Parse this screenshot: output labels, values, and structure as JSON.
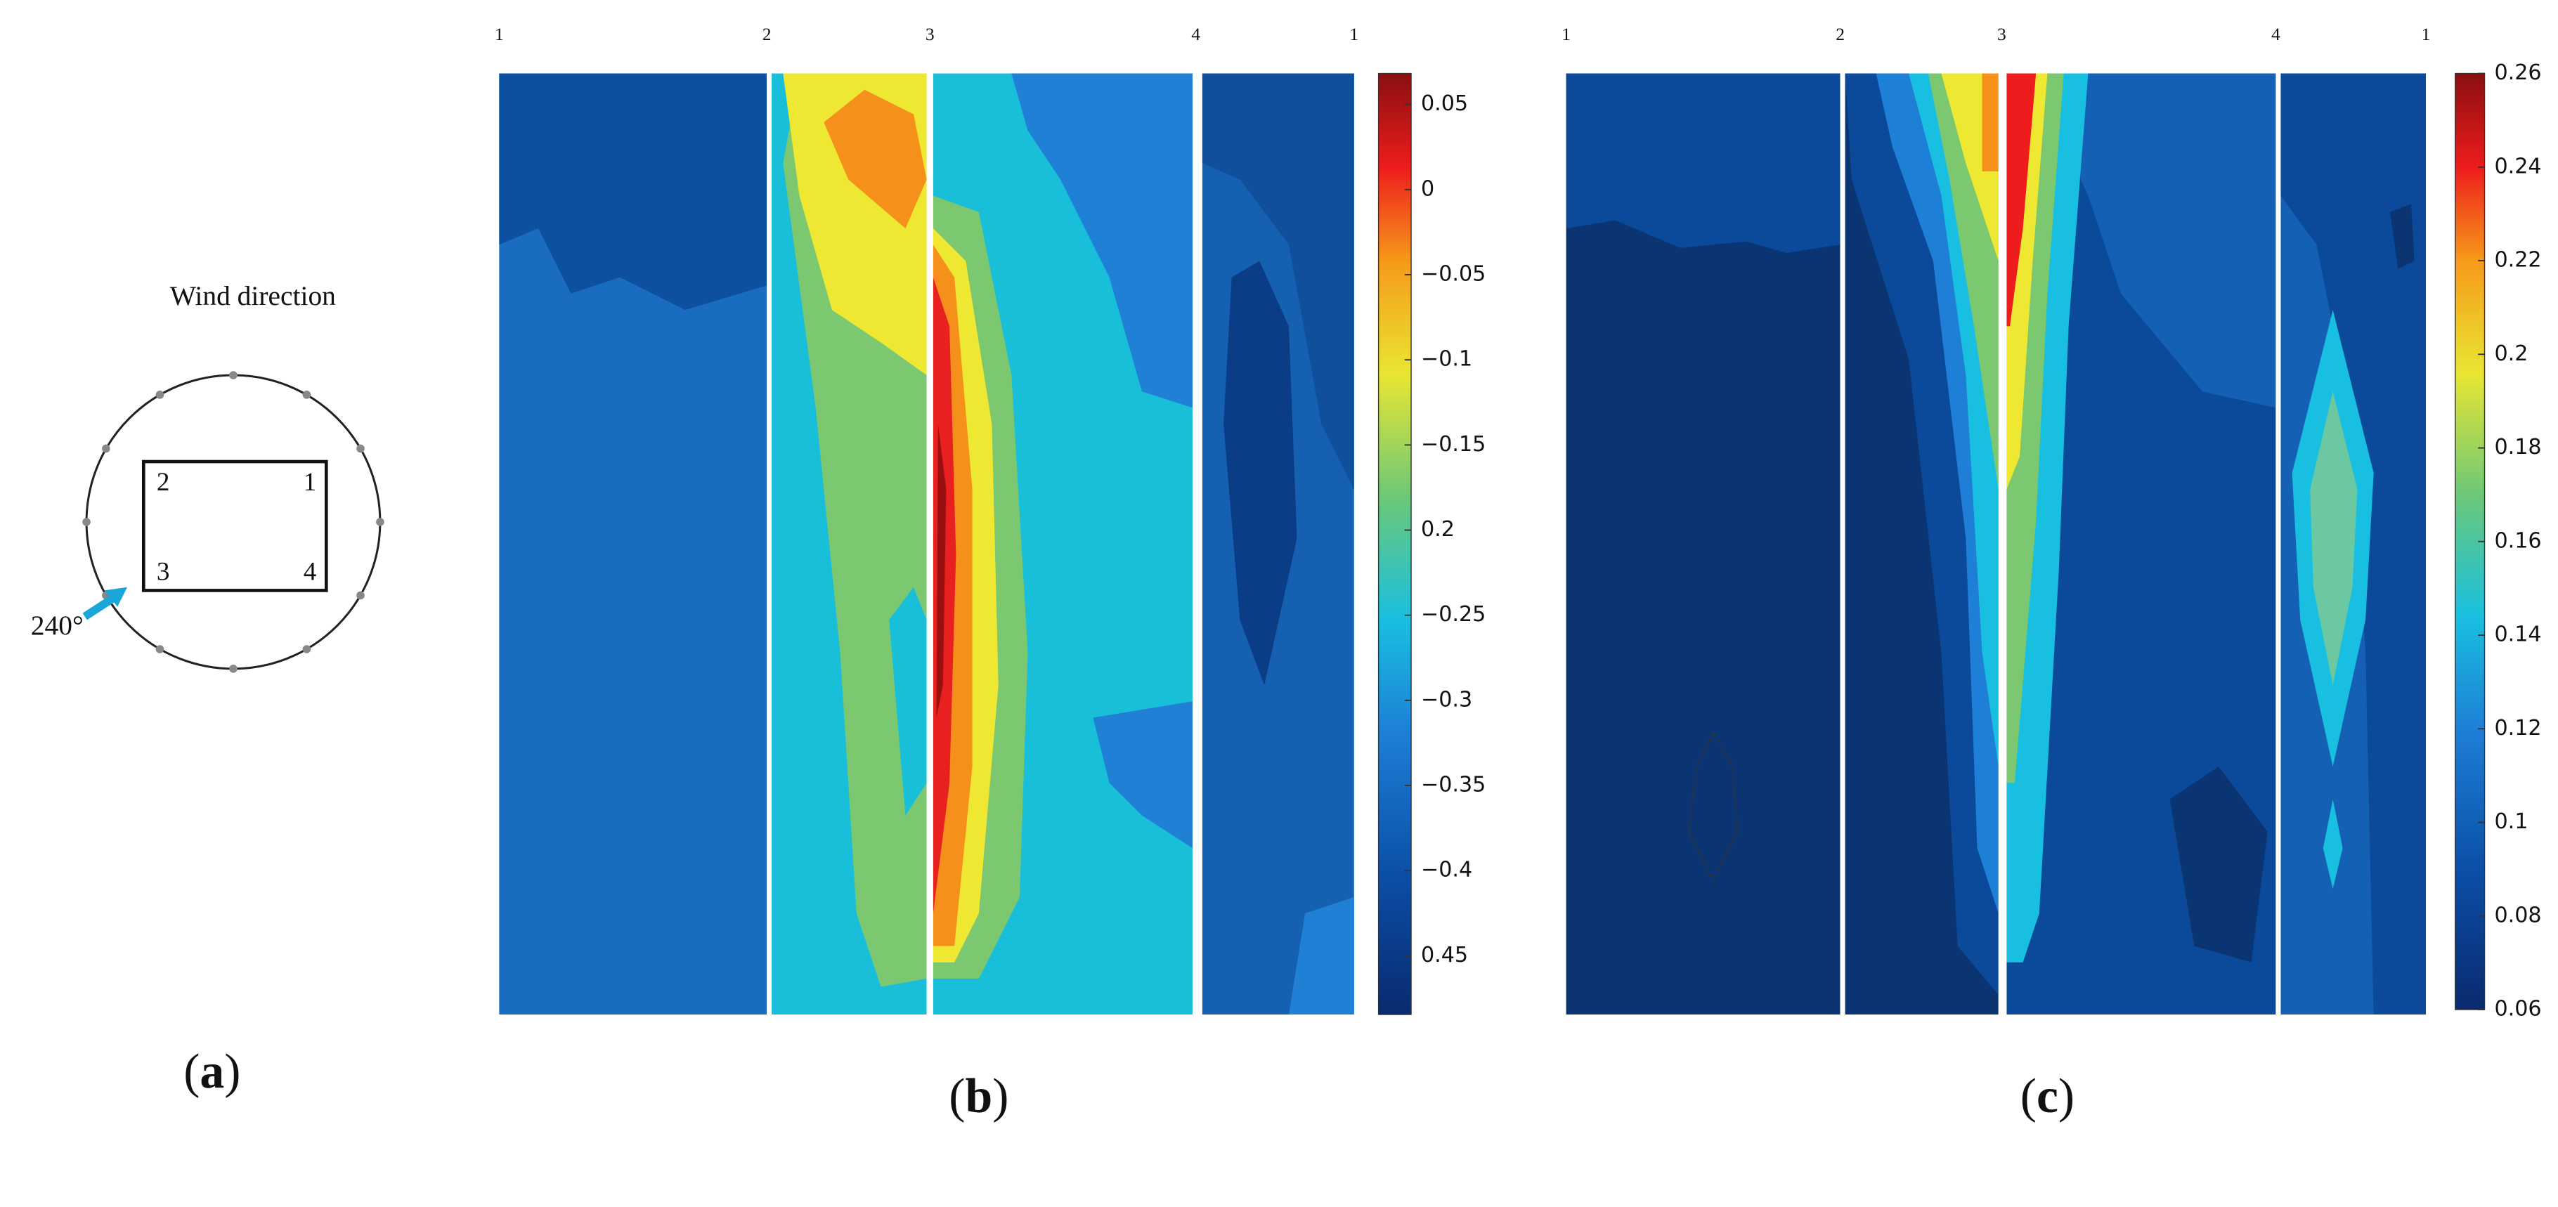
{
  "panel_a": {
    "title": "Wind direction",
    "faces": [
      "2",
      "1",
      "3",
      "4"
    ],
    "angle": "240°",
    "label_open": "(",
    "label_letter": "a",
    "label_close": ")"
  },
  "panel_b": {
    "edges": [
      "1",
      "2",
      "3",
      "4",
      "1"
    ],
    "colorbar": [
      "0.05",
      "0",
      "−0.05",
      "−0.1",
      "−0.15",
      "0.2",
      "−0.25",
      "−0.3",
      "−0.35",
      "−0.4",
      "0.45"
    ],
    "label_open": "(",
    "label_letter": "b",
    "label_close": ")"
  },
  "panel_c": {
    "edges": [
      "1",
      "2",
      "3",
      "4",
      "1"
    ],
    "colorbar": [
      "0.26",
      "0.24",
      "0.22",
      "0.2",
      "0.18",
      "0.16",
      "0.14",
      "0.12",
      "0.1",
      "0.08",
      "0.06"
    ],
    "label_open": "(",
    "label_letter": "c",
    "label_close": ")"
  }
}
